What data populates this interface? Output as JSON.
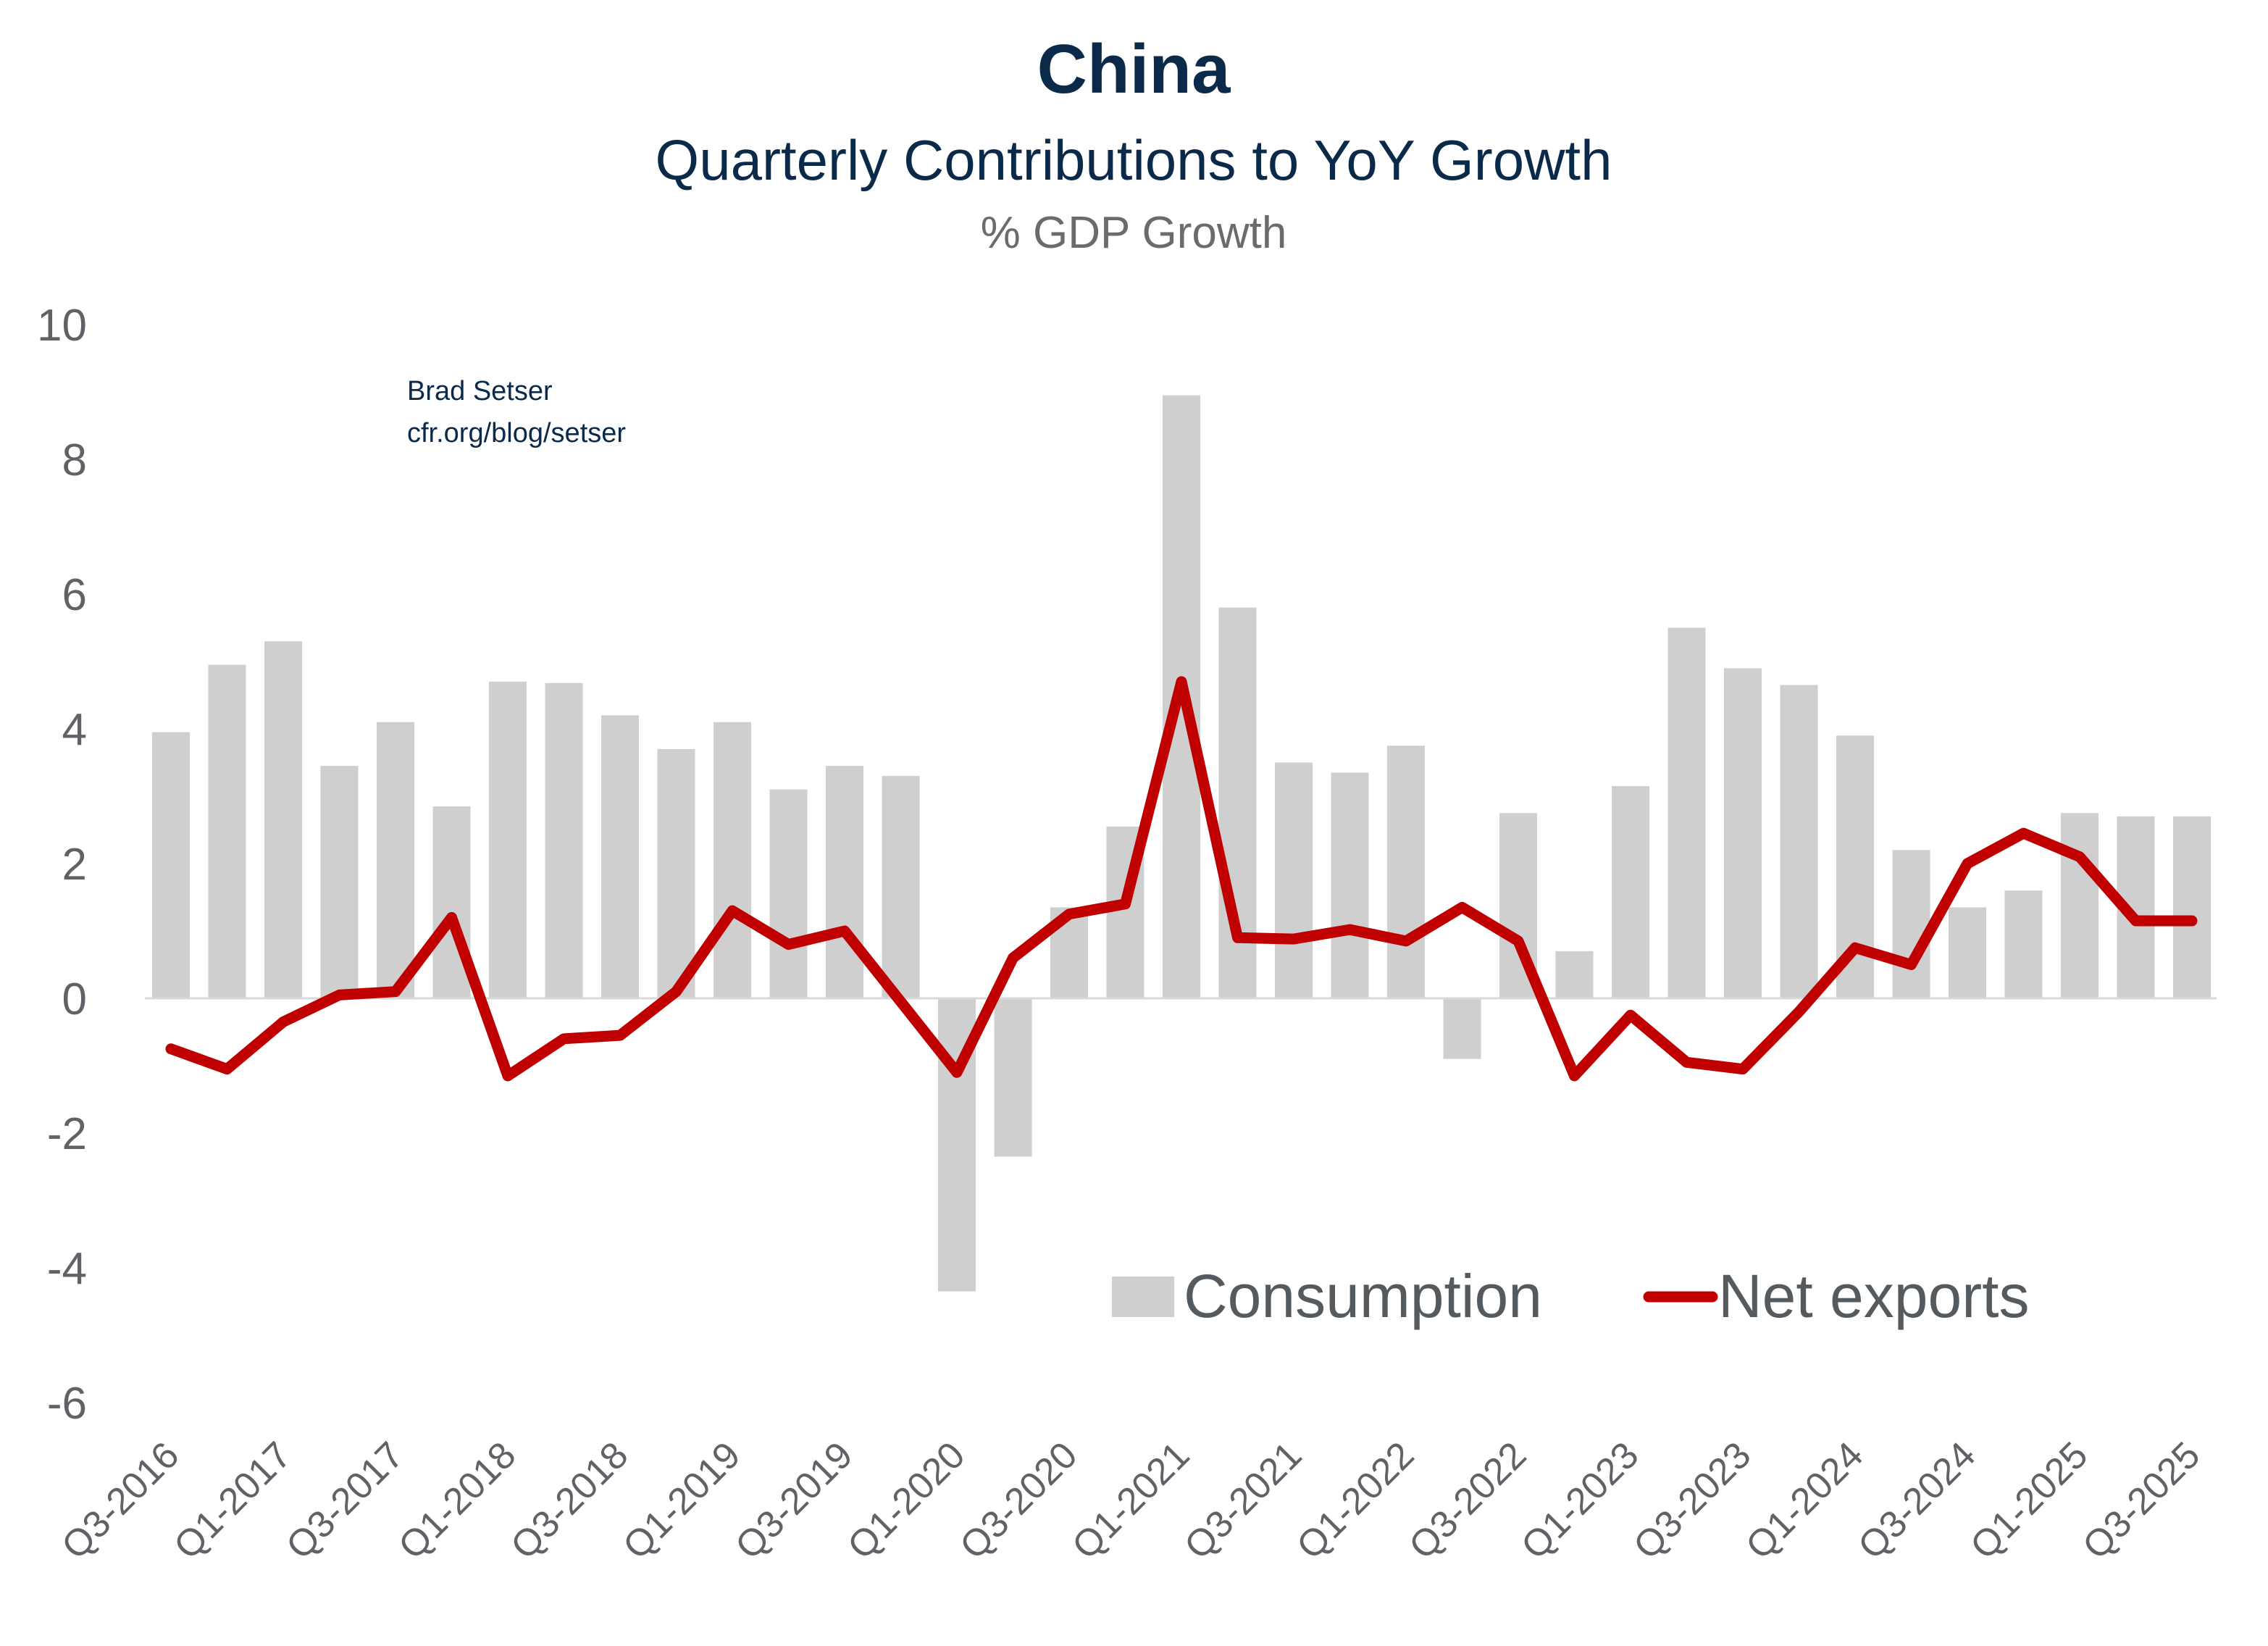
{
  "chart_data": {
    "type": "bar+line",
    "title": "China",
    "subtitle": "Quarterly Contributions to YoY Growth",
    "ylabel": "% GDP Growth",
    "annotation": [
      "Brad Setser",
      "cfr.org/blog/setser"
    ],
    "ylim": [
      -6,
      10
    ],
    "yticks": [
      10,
      8,
      6,
      4,
      2,
      0,
      -2,
      -4,
      -6
    ],
    "grid": false,
    "legend": "bottom-right",
    "categories": [
      "Q3-2016",
      "Q4-2016",
      "Q1-2017",
      "Q2-2017",
      "Q3-2017",
      "Q4-2017",
      "Q1-2018",
      "Q2-2018",
      "Q3-2018",
      "Q4-2018",
      "Q1-2019",
      "Q2-2019",
      "Q3-2019",
      "Q4-2019",
      "Q1-2020",
      "Q2-2020",
      "Q3-2020",
      "Q4-2020",
      "Q1-2021",
      "Q2-2021",
      "Q3-2021",
      "Q4-2021",
      "Q1-2022",
      "Q2-2022",
      "Q3-2022",
      "Q4-2022",
      "Q1-2023",
      "Q2-2023",
      "Q3-2023",
      "Q4-2023",
      "Q1-2024",
      "Q2-2024",
      "Q3-2024",
      "Q4-2024",
      "Q1-2025",
      "Q2-2025",
      "Q3-2025"
    ],
    "xtick_labels": [
      "Q3-2016",
      "Q1-2017",
      "Q3-2017",
      "Q1-2018",
      "Q3-2018",
      "Q1-2019",
      "Q3-2019",
      "Q1-2020",
      "Q3-2020",
      "Q1-2021",
      "Q3-2021",
      "Q1-2022",
      "Q3-2022",
      "Q1-2023",
      "Q3-2023",
      "Q1-2024",
      "Q3-2024",
      "Q1-2025",
      "Q3-2025"
    ],
    "series": [
      {
        "name": "Consumption",
        "type": "bar",
        "color": "#d0cfd0",
        "values": [
          3.95,
          4.95,
          5.3,
          3.45,
          4.1,
          2.85,
          4.7,
          4.68,
          4.2,
          3.7,
          4.1,
          3.1,
          3.45,
          3.3,
          -4.35,
          -2.35,
          1.35,
          2.55,
          8.95,
          5.8,
          3.5,
          3.35,
          3.75,
          -0.9,
          2.75,
          0.7,
          3.15,
          5.5,
          4.9,
          4.65,
          3.9,
          2.2,
          1.35,
          1.6,
          2.75,
          2.7,
          2.7
        ]
      },
      {
        "name": "Net exports",
        "type": "line",
        "color": "#c00000",
        "values": [
          -0.75,
          -1.05,
          -0.35,
          0.05,
          0.1,
          1.2,
          -1.15,
          -0.6,
          -0.55,
          0.1,
          1.3,
          0.8,
          1.0,
          -0.05,
          -1.1,
          0.6,
          1.25,
          1.4,
          4.7,
          0.9,
          0.88,
          1.02,
          0.85,
          1.35,
          0.85,
          -1.15,
          -0.25,
          -0.95,
          -1.05,
          -0.2,
          0.75,
          0.5,
          2.0,
          2.45,
          2.1,
          1.15,
          1.15
        ]
      }
    ]
  }
}
